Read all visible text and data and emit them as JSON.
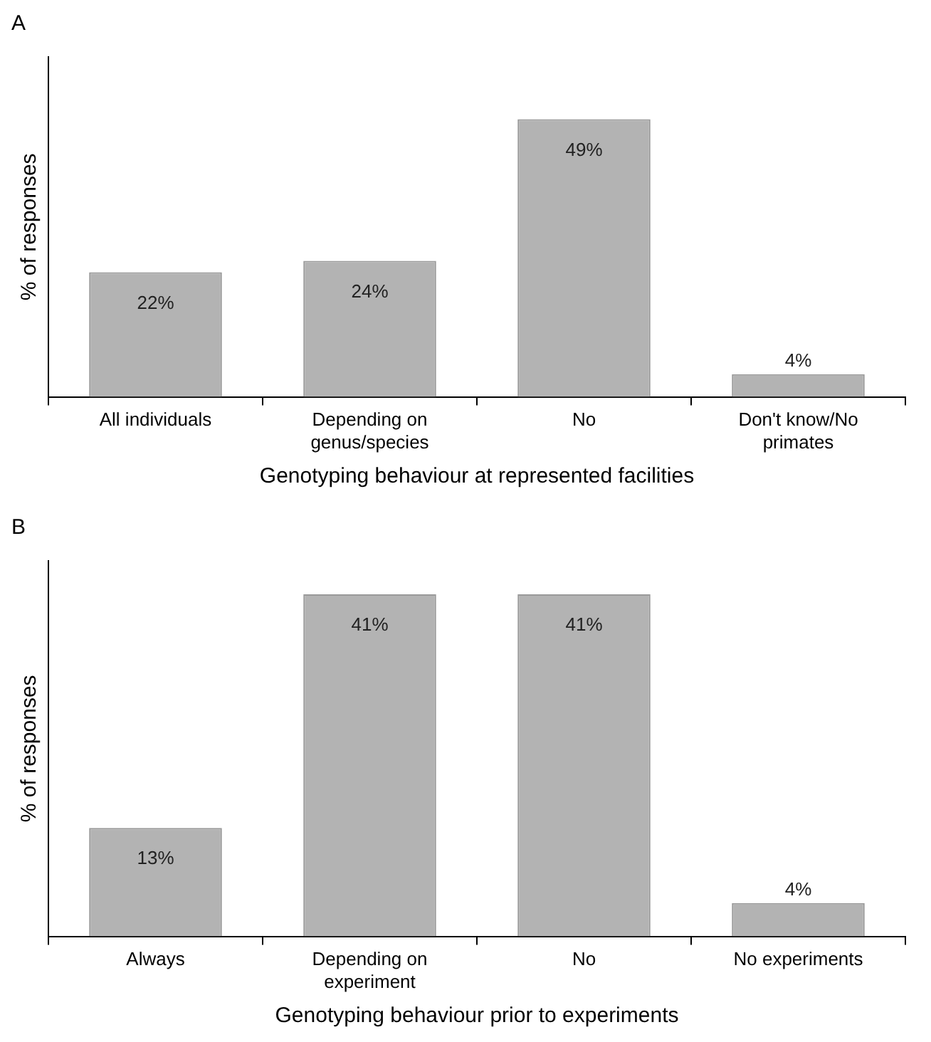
{
  "chart_data": [
    {
      "type": "bar",
      "title": "A",
      "categories": [
        "All individuals",
        "Depending on genus/species",
        "No",
        "Don't know/No primates"
      ],
      "values": [
        22,
        24,
        49,
        4
      ],
      "color": "#b3b3b3",
      "value_labels": [
        "22%",
        "24%",
        "49%",
        "4%"
      ],
      "ylabel": "% of responses",
      "xlabel": "Genotyping behaviour at represented facilities",
      "grid": false,
      "legend": false
    },
    {
      "type": "bar",
      "title": "B",
      "categories": [
        "Always",
        "Depending on experiment",
        "No",
        "No experiments"
      ],
      "values": [
        13,
        41,
        41,
        4
      ],
      "color": "#b3b3b3",
      "value_labels": [
        "13%",
        "41%",
        "41%",
        "4%"
      ],
      "ylabel": "% of responses",
      "xlabel": "Genotyping behaviour prior to experiments",
      "grid": false,
      "legend": false
    }
  ]
}
